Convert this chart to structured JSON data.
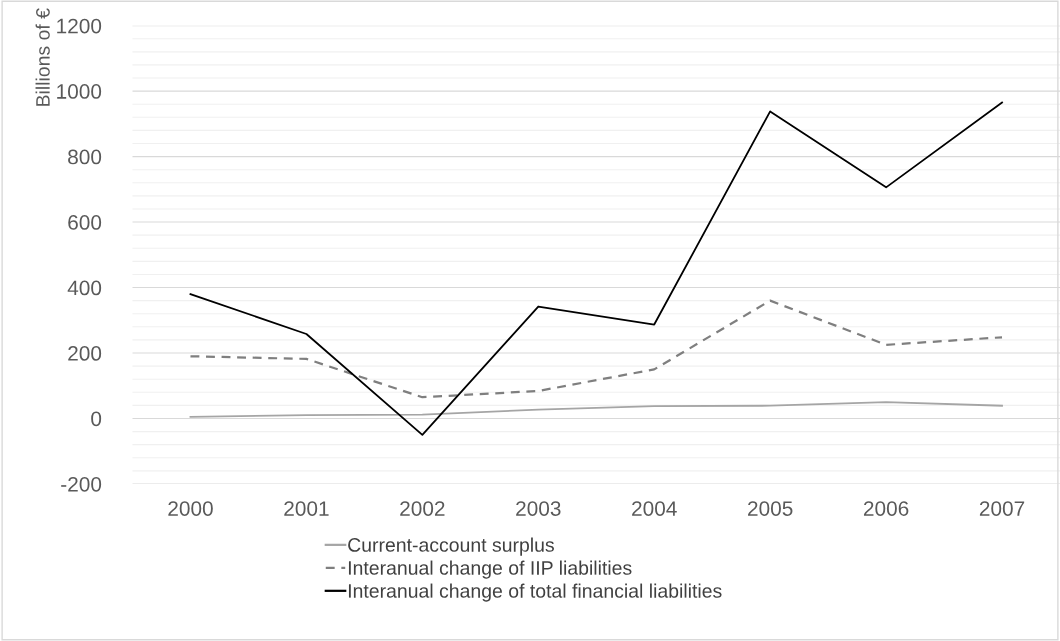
{
  "chart_data": {
    "type": "line",
    "ylabel": "Billions of €",
    "categories": [
      "2000",
      "2001",
      "2002",
      "2003",
      "2004",
      "2005",
      "2006",
      "2007"
    ],
    "series": [
      {
        "name": "Current-account surplus",
        "color": "#a5a5a5",
        "line_style": "solid",
        "values": [
          5,
          10,
          12,
          27,
          38,
          39,
          50,
          39
        ]
      },
      {
        "name": "Interanual change of IIP liabilities",
        "color": "#7f7f7f",
        "line_style": "dashed",
        "values": [
          190,
          182,
          65,
          84,
          150,
          360,
          225,
          248
        ]
      },
      {
        "name": "Interanual change of total financial liabilities",
        "color": "#000000",
        "line_style": "solid",
        "values": [
          380,
          258,
          -50,
          342,
          287,
          938,
          706,
          965
        ]
      }
    ],
    "ylim": [
      -200,
      1200
    ],
    "yticks": [
      -200,
      {
        "value": -160,
        "label": null
      },
      {
        "value": -120,
        "label": null
      },
      {
        "value": -80,
        "label": null
      },
      {
        "value": -40,
        "label": null
      },
      0,
      {
        "value": 40,
        "label": null
      },
      {
        "value": 80,
        "label": null
      },
      {
        "value": 120,
        "label": null
      },
      {
        "value": 160,
        "label": null
      },
      200,
      {
        "value": 240,
        "label": null
      },
      {
        "value": 280,
        "label": null
      },
      {
        "value": 320,
        "label": null
      },
      {
        "value": 360,
        "label": null
      },
      400,
      {
        "value": 440,
        "label": null
      },
      {
        "value": 480,
        "label": null
      },
      {
        "value": 520,
        "label": null
      },
      {
        "value": 560,
        "label": null
      },
      600,
      {
        "value": 640,
        "label": null
      },
      {
        "value": 680,
        "label": null
      },
      {
        "value": 720,
        "label": null
      },
      {
        "value": 760,
        "label": null
      },
      800,
      {
        "value": 840,
        "label": null
      },
      {
        "value": 880,
        "label": null
      },
      {
        "value": 920,
        "label": null
      },
      {
        "value": 960,
        "label": null
      },
      1000,
      {
        "value": 1040,
        "label": null
      },
      {
        "value": 1080,
        "label": null
      },
      {
        "value": 1120,
        "label": null
      },
      {
        "value": 1160,
        "label": null
      },
      1200
    ],
    "grid": true,
    "legend": "bottom",
    "marker": "none"
  }
}
